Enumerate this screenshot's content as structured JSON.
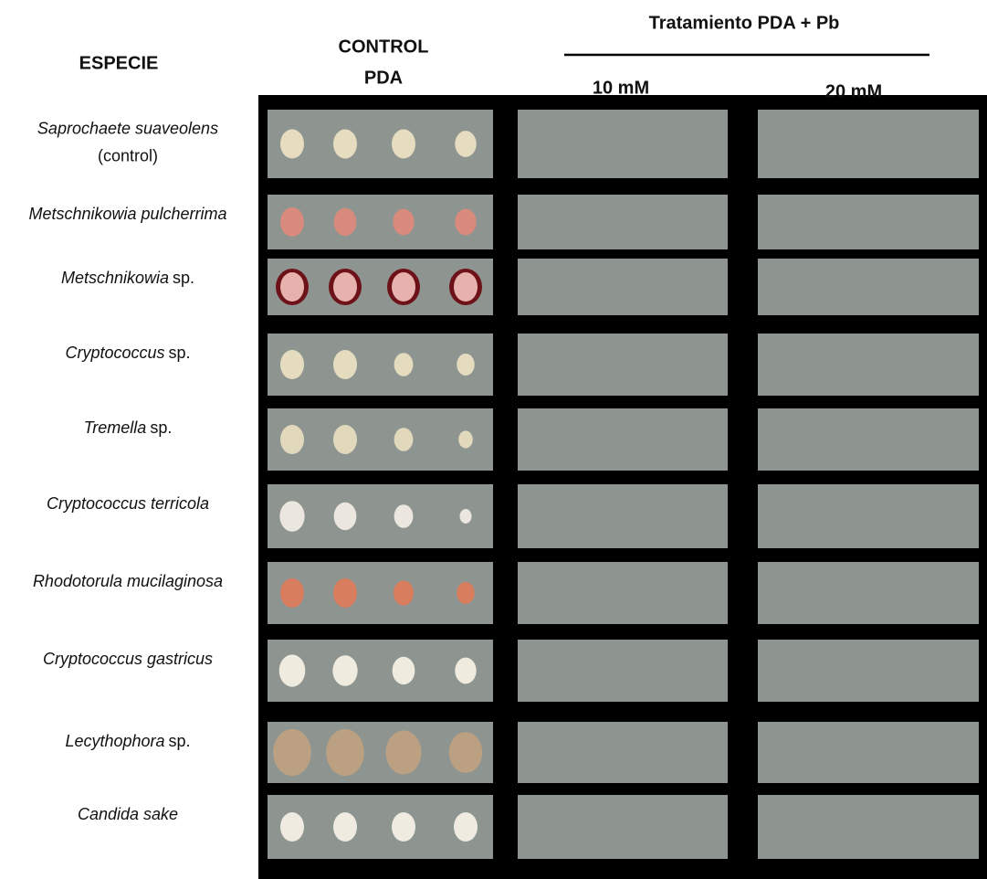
{
  "header": {
    "species_heading": "ESPECIE",
    "control_heading": [
      "CONTROL",
      "PDA"
    ],
    "treatment_heading": "Tratamiento PDA + Pb",
    "concentrations": [
      "10  mM",
      "20  mM"
    ]
  },
  "species": [
    {
      "italic": "Saprochaete suaveolens",
      "plain": "(control)"
    },
    {
      "italic": "Metschnikowia pulcherrima"
    },
    {
      "italic": "Metschnikowia",
      "plain": "sp."
    },
    {
      "italic": "Cryptococcus",
      "plain": "sp."
    },
    {
      "italic": "Tremella",
      "plain": "sp."
    },
    {
      "italic": "Cryptococcus terricola"
    },
    {
      "italic": "Rhodotorula mucilaginosa"
    },
    {
      "italic": "Cryptococcus gastricus"
    },
    {
      "italic": "Lecythophora",
      "plain": "sp."
    },
    {
      "italic": "Candida sake"
    }
  ]
}
